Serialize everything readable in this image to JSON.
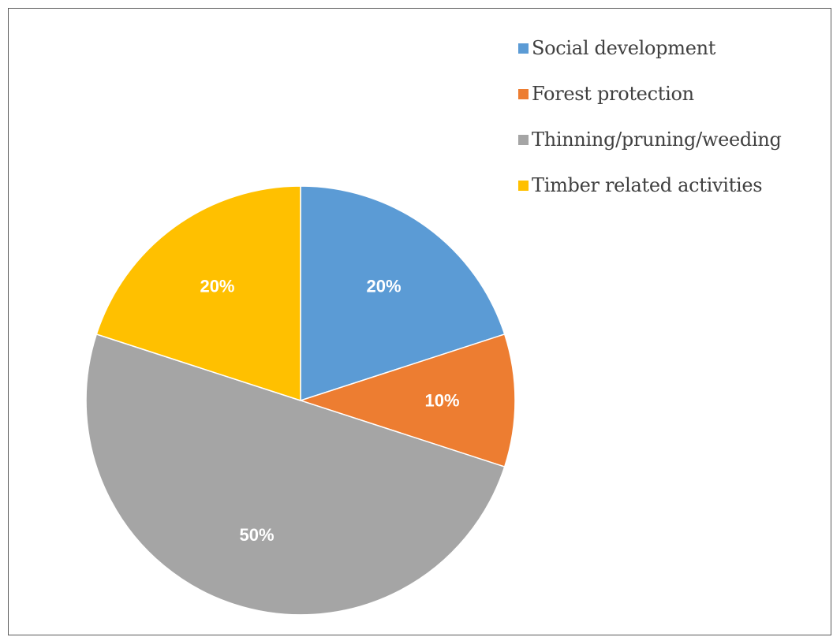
{
  "chart_data": {
    "type": "pie",
    "categories": [
      "Social development",
      "Forest protection",
      "Thinning/pruning/weeding",
      "Timber related activities"
    ],
    "values": [
      20,
      10,
      50,
      20
    ],
    "labels": [
      "20%",
      "10%",
      "50%",
      "20%"
    ],
    "colors": [
      "#5b9bd5",
      "#ed7d31",
      "#a5a5a5",
      "#ffc000"
    ],
    "start_angle_deg": 0,
    "direction": "clockwise",
    "legend": "right",
    "title": ""
  }
}
